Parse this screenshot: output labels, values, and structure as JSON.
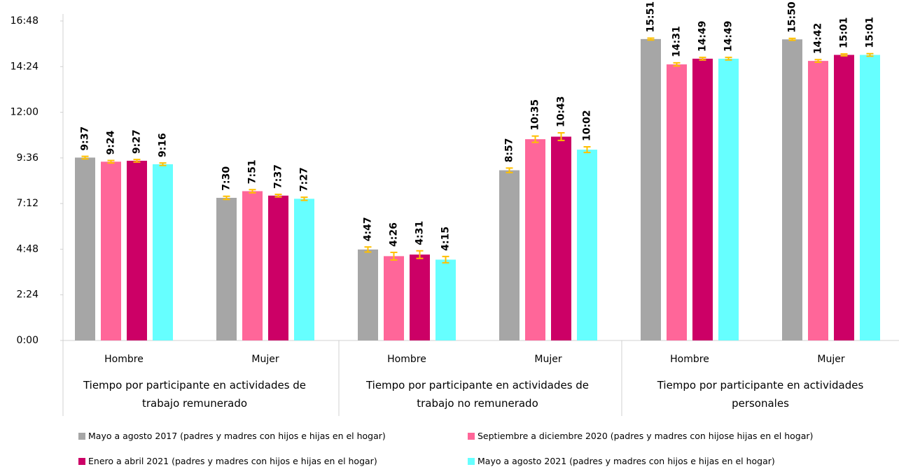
{
  "chart_data": {
    "type": "bar",
    "categories": [
      "Hombre",
      "Mujer",
      "Hombre",
      "Mujer",
      "Hombre",
      "Mujer"
    ],
    "groups": [
      "Tiempo por participante en actividades de trabajo remunerado",
      "Tiempo por participante en actividades de trabajo no remunerado",
      "Tiempo por participante en actividades personales"
    ],
    "series": [
      {
        "name": "Mayo a agosto 2017 (padres y madres con hijos e hijas en el hogar)",
        "color": "#a6a6a6",
        "values": [
          577,
          450,
          287,
          537,
          951,
          950
        ],
        "value_labels": [
          "9:37",
          "7:30",
          "4:47",
          "8:57",
          "15:51",
          "15:50"
        ],
        "errors": [
          4,
          5,
          8,
          7,
          3,
          3
        ]
      },
      {
        "name": "Septiembre a diciembre 2020 (padres y madres con hijose hijas en el hogar)",
        "color": "#ff6699",
        "values": [
          564,
          471,
          266,
          635,
          871,
          882
        ],
        "value_labels": [
          "9:24",
          "7:51",
          "4:26",
          "10:35",
          "14:31",
          "14:42"
        ],
        "errors": [
          4,
          5,
          12,
          10,
          5,
          4
        ]
      },
      {
        "name": "Enero a abril 2021 (padres y madres con hijos e hijas en el hogar)",
        "color": "#cc0066",
        "values": [
          567,
          457,
          271,
          643,
          889,
          901
        ],
        "value_labels": [
          "9:27",
          "7:37",
          "4:31",
          "10:43",
          "14:49",
          "15:01"
        ],
        "errors": [
          4,
          4,
          12,
          12,
          4,
          3
        ]
      },
      {
        "name": "Mayo a agosto 2021 (padres y madres con hijos e hijas en el hogar)",
        "color": "#66ffff",
        "values": [
          556,
          447,
          255,
          602,
          889,
          901
        ],
        "value_labels": [
          "9:16",
          "7:27",
          "4:15",
          "10:02",
          "14:49",
          "15:01"
        ],
        "errors": [
          4,
          5,
          10,
          9,
          4,
          4
        ]
      }
    ],
    "error_color": "#ffc000",
    "ylim": [
      0,
      1008
    ],
    "yticks": [
      {
        "value": 0,
        "label": "0:00"
      },
      {
        "value": 144,
        "label": "2:24"
      },
      {
        "value": 288,
        "label": "4:48"
      },
      {
        "value": 432,
        "label": "7:12"
      },
      {
        "value": 576,
        "label": "9:36"
      },
      {
        "value": 720,
        "label": "12:00"
      },
      {
        "value": 864,
        "label": "14:24"
      },
      {
        "value": 1008,
        "label": "16:48"
      }
    ],
    "grid": false
  }
}
